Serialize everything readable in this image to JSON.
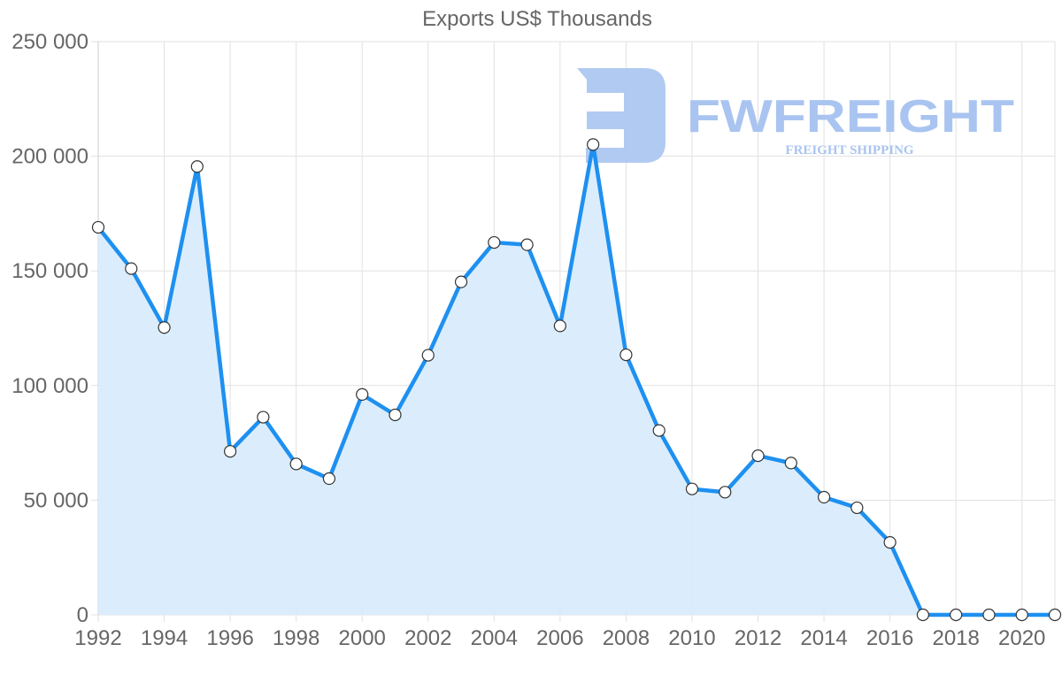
{
  "chart_data": {
    "type": "area",
    "title": "Exports US$ Thousands",
    "xlabel": "",
    "ylabel": "",
    "x": [
      1992,
      1993,
      1994,
      1995,
      1996,
      1997,
      1998,
      1999,
      2000,
      2001,
      2002,
      2003,
      2004,
      2005,
      2006,
      2007,
      2008,
      2009,
      2010,
      2011,
      2012,
      2013,
      2014,
      2015,
      2016,
      2017,
      2018,
      2019,
      2020,
      2021
    ],
    "series": [
      {
        "name": "Exports US$ Thousands",
        "values": [
          169000,
          151000,
          125300,
          195500,
          71300,
          86200,
          65800,
          59400,
          96100,
          87200,
          113200,
          145200,
          162400,
          161400,
          126000,
          205100,
          113400,
          80400,
          54900,
          53500,
          69400,
          66200,
          51300,
          46700,
          31600,
          0,
          0,
          0,
          0,
          0
        ],
        "color": "#1e90f0",
        "fill": "#d9ecfc"
      }
    ],
    "ylim": [
      0,
      250000
    ],
    "yticks": [
      0,
      50000,
      100000,
      150000,
      200000,
      250000
    ],
    "ytick_labels": [
      "0",
      "50 000",
      "100 000",
      "150 000",
      "200 000",
      "250 000"
    ],
    "xtick_labels": [
      "1992",
      "1994",
      "1996",
      "1998",
      "2000",
      "2002",
      "2004",
      "2006",
      "2008",
      "2010",
      "2012",
      "2014",
      "2016",
      "2018",
      "2020"
    ],
    "grid": true,
    "legend": "none"
  },
  "watermark": {
    "brand": "FWFREIGHT",
    "tagline": "FREIGHT SHIPPING",
    "color": "#a9c4f0"
  }
}
